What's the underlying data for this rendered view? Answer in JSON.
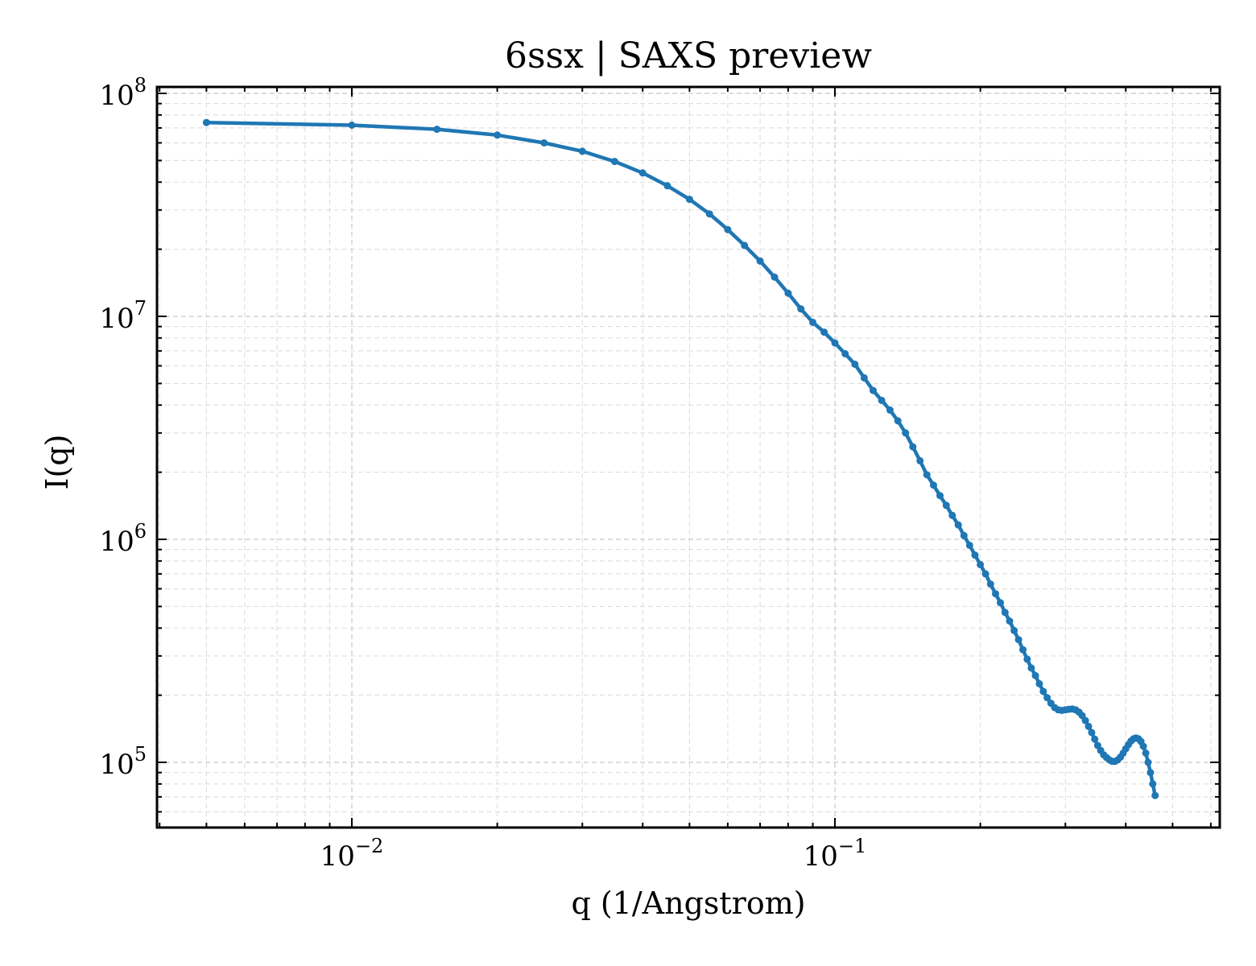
{
  "chart_data": {
    "type": "line",
    "title": "6ssx | SAXS preview",
    "xlabel": "q (1/Angstrom)",
    "ylabel": "I(q)",
    "xscale": "log",
    "yscale": "log",
    "xlim": [
      0.005,
      0.5
    ],
    "ylim": [
      50000,
      100000000
    ],
    "grid": true,
    "legend": "none",
    "color": "#1f77b4",
    "x_ticks": [
      {
        "base": "10",
        "exp": "−2",
        "value": 0.01
      },
      {
        "base": "10",
        "exp": "−1",
        "value": 0.1
      }
    ],
    "y_ticks": [
      {
        "base": "10",
        "exp": "5",
        "value": 100000
      },
      {
        "base": "10",
        "exp": "6",
        "value": 1000000
      },
      {
        "base": "10",
        "exp": "7",
        "value": 10000000
      },
      {
        "base": "10",
        "exp": "8",
        "value": 100000000
      }
    ],
    "series": [
      {
        "points": [
          [
            0.005,
            74000000
          ],
          [
            0.01,
            72000000
          ],
          [
            0.015,
            69000000
          ],
          [
            0.02,
            65000000
          ],
          [
            0.025,
            60000000
          ],
          [
            0.03,
            55000000
          ],
          [
            0.035,
            49500000
          ],
          [
            0.04,
            44000000
          ],
          [
            0.045,
            38500000
          ],
          [
            0.05,
            33500000
          ],
          [
            0.055,
            28800000
          ],
          [
            0.06,
            24500000
          ],
          [
            0.065,
            20800000
          ],
          [
            0.07,
            17700000
          ],
          [
            0.075,
            15000000
          ],
          [
            0.08,
            12700000
          ],
          [
            0.085,
            10800000
          ],
          [
            0.09,
            9400000
          ],
          [
            0.095,
            8500000
          ],
          [
            0.1,
            7600000
          ],
          [
            0.105,
            6800000
          ],
          [
            0.11,
            6100000
          ],
          [
            0.115,
            5300000
          ],
          [
            0.12,
            4650000
          ],
          [
            0.125,
            4200000
          ],
          [
            0.13,
            3800000
          ],
          [
            0.135,
            3400000
          ],
          [
            0.14,
            3000000
          ],
          [
            0.145,
            2600000
          ],
          [
            0.15,
            2250000
          ],
          [
            0.155,
            1950000
          ],
          [
            0.16,
            1750000
          ],
          [
            0.165,
            1570000
          ],
          [
            0.17,
            1420000
          ],
          [
            0.175,
            1280000
          ],
          [
            0.18,
            1160000
          ],
          [
            0.185,
            1040000
          ],
          [
            0.19,
            940000
          ],
          [
            0.195,
            850000
          ],
          [
            0.2,
            770000
          ],
          [
            0.205,
            700000
          ],
          [
            0.21,
            630000
          ],
          [
            0.215,
            570000
          ],
          [
            0.22,
            520000
          ],
          [
            0.225,
            470000
          ],
          [
            0.23,
            430000
          ],
          [
            0.235,
            390000
          ],
          [
            0.24,
            355000
          ],
          [
            0.245,
            320000
          ],
          [
            0.25,
            290000
          ],
          [
            0.255,
            265000
          ],
          [
            0.26,
            245000
          ],
          [
            0.265,
            225000
          ],
          [
            0.27,
            208000
          ],
          [
            0.275,
            195000
          ],
          [
            0.28,
            184000
          ],
          [
            0.285,
            176000
          ],
          [
            0.29,
            172000
          ],
          [
            0.295,
            171000
          ],
          [
            0.3,
            172000
          ],
          [
            0.305,
            173000
          ],
          [
            0.31,
            173500
          ],
          [
            0.315,
            172000
          ],
          [
            0.32,
            168000
          ],
          [
            0.325,
            162000
          ],
          [
            0.33,
            154000
          ],
          [
            0.335,
            145000
          ],
          [
            0.34,
            136000
          ],
          [
            0.345,
            127000
          ],
          [
            0.35,
            119000
          ],
          [
            0.355,
            113000
          ],
          [
            0.36,
            108000
          ],
          [
            0.365,
            105000
          ],
          [
            0.37,
            102500
          ],
          [
            0.375,
            101000
          ],
          [
            0.38,
            101000
          ],
          [
            0.385,
            102500
          ],
          [
            0.39,
            105500
          ],
          [
            0.395,
            110000
          ],
          [
            0.4,
            115000
          ],
          [
            0.405,
            120000
          ],
          [
            0.41,
            124500
          ],
          [
            0.415,
            127500
          ],
          [
            0.42,
            128500
          ],
          [
            0.425,
            127500
          ],
          [
            0.43,
            124000
          ],
          [
            0.435,
            118000
          ],
          [
            0.44,
            110000
          ],
          [
            0.445,
            100000
          ],
          [
            0.45,
            90000
          ],
          [
            0.455,
            80000
          ],
          [
            0.46,
            71000
          ]
        ]
      }
    ]
  }
}
